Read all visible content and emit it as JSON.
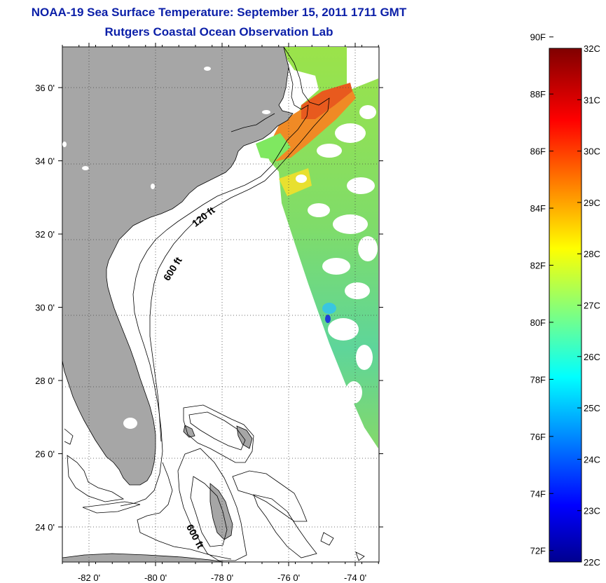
{
  "title": {
    "line1": "NOAA-19 Sea Surface Temperature:  September 15, 2011 1711 GMT",
    "line2": "Rutgers Coastal Ocean Observation Lab"
  },
  "map": {
    "lon_ticks": [
      {
        "value": -82,
        "label": "-82 0'"
      },
      {
        "value": -80,
        "label": "-80 0'"
      },
      {
        "value": -78,
        "label": "-78 0'"
      },
      {
        "value": -76,
        "label": "-76 0'"
      },
      {
        "value": -74,
        "label": "-74 0'"
      }
    ],
    "lat_ticks": [
      {
        "value": 36,
        "label": "36 0'"
      },
      {
        "value": 34,
        "label": "34 0'"
      },
      {
        "value": 32,
        "label": "32 0'"
      },
      {
        "value": 30,
        "label": "30 0'"
      },
      {
        "value": 28,
        "label": "28 0'"
      },
      {
        "value": 26,
        "label": "26 0'"
      },
      {
        "value": 24,
        "label": "24 0'"
      }
    ],
    "lon_range": [
      -83,
      -73
    ],
    "lat_range": [
      23,
      37
    ],
    "grid": "dotted",
    "contour_labels": [
      {
        "text": "120 ft",
        "lon": -78.5,
        "lat": 32.4
      },
      {
        "text": "600 ft",
        "lon": -79.4,
        "lat": 31.0
      },
      {
        "text": "600 ft",
        "lon": -78.9,
        "lat": 23.7
      }
    ],
    "colors": {
      "land": "#a6a6a6",
      "ocean": "#ffffff",
      "contour": "#000000"
    }
  },
  "colorbar": {
    "min_c": 22,
    "max_c": 32,
    "celsius_labels": [
      "32C",
      "31C",
      "30C",
      "29C",
      "28C",
      "27C",
      "26C",
      "25C",
      "24C",
      "23C",
      "22C"
    ],
    "fahrenheit_labels": [
      "90F",
      "88F",
      "86F",
      "84F",
      "82F",
      "80F",
      "78F",
      "76F",
      "74F",
      "72F"
    ],
    "colormap": "jet"
  }
}
